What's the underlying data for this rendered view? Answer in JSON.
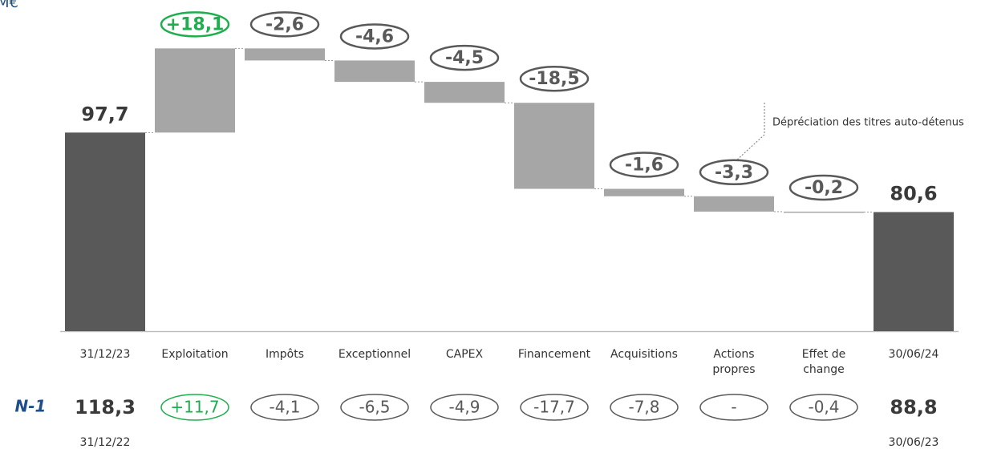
{
  "chart_data": {
    "type": "waterfall",
    "title": "M€",
    "categories": [
      "31/12/23",
      "Exploitation",
      "Impôts",
      "Exceptionnel",
      "CAPEX",
      "Financement",
      "Acquisitions",
      "Actions propres",
      "Effet de change",
      "30/06/24"
    ],
    "measures": [
      "total",
      "relative",
      "relative",
      "relative",
      "relative",
      "relative",
      "relative",
      "relative",
      "relative",
      "total"
    ],
    "values": [
      97.7,
      18.1,
      -2.6,
      -4.6,
      -4.5,
      -18.5,
      -1.6,
      -3.3,
      -0.2,
      80.6
    ],
    "value_labels": [
      "97,7",
      "+18,1",
      "-2,6",
      "-4,6",
      "-4,5",
      "-18,5",
      "-1,6",
      "-3,3",
      "-0,2",
      "80,6"
    ],
    "ylim": [
      55,
      125
    ],
    "total_color": "#595959",
    "delta_color": "#a6a6a6",
    "positive_color": "#1fae4f",
    "negative_color": "#595959",
    "annotation": "Dépréciation des titres auto-détenus",
    "comparison": {
      "label": "N-1",
      "values": [
        118.3,
        11.7,
        -4.1,
        -6.5,
        -4.9,
        -17.7,
        -7.8,
        null,
        -0.4,
        88.8
      ],
      "value_labels": [
        "118,3",
        "+11,7",
        "-4,1",
        "-6,5",
        "-4,9",
        "-17,7",
        "-7,8",
        "-",
        "-0,4",
        "88,8"
      ],
      "start_date": "31/12/22",
      "end_date": "30/06/23"
    }
  }
}
